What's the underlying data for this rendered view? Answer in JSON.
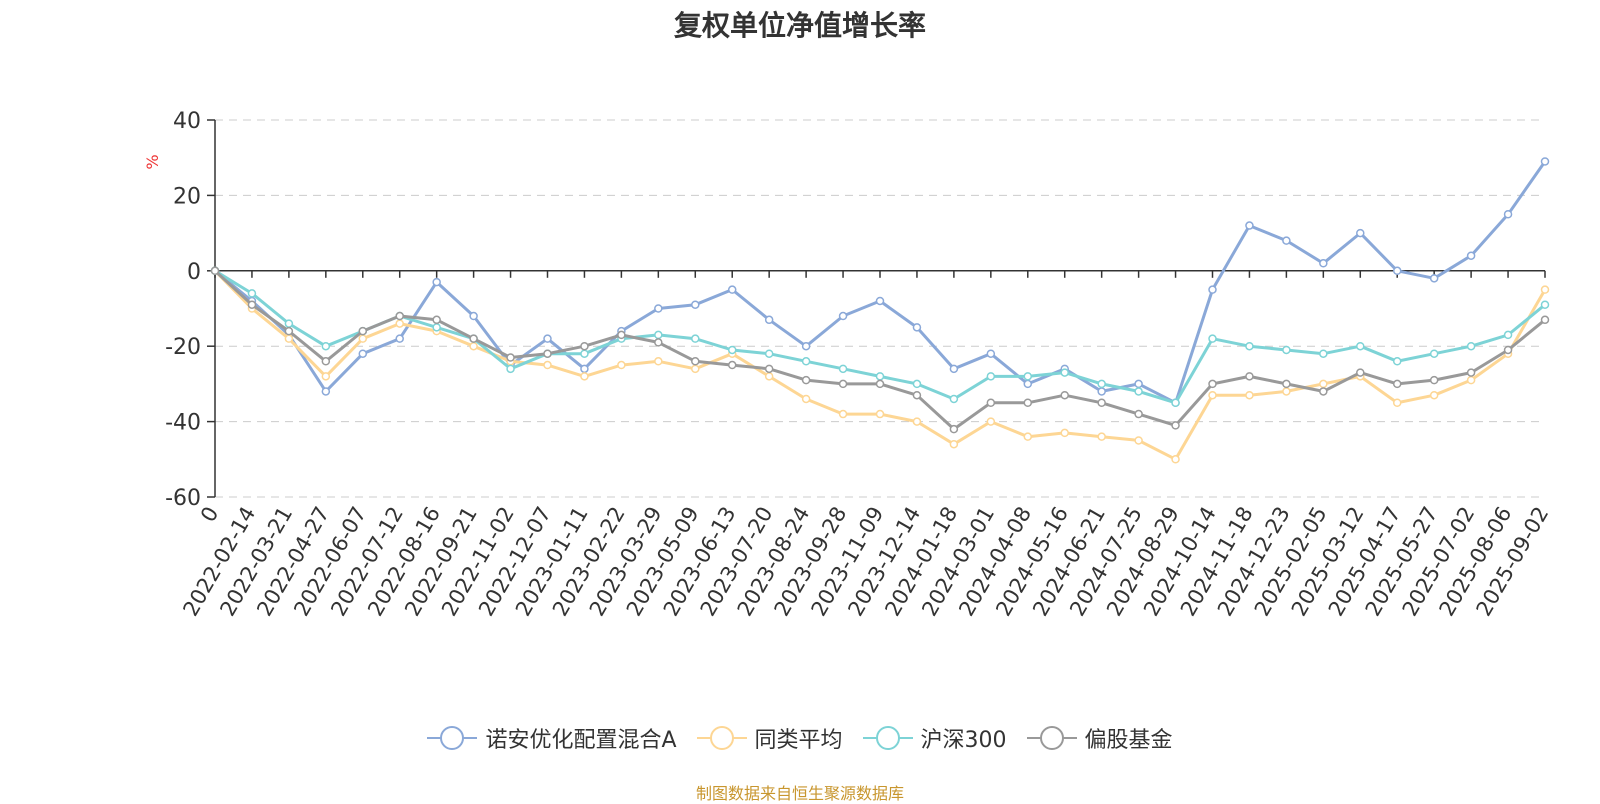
{
  "chart_data": {
    "type": "line",
    "title": "复权单位净值增长率",
    "ylabel": "%",
    "ylim": [
      -60,
      40
    ],
    "yticks": [
      40,
      20,
      0,
      -20,
      -40,
      -60
    ],
    "grid": true,
    "legend_position": "bottom",
    "x": [
      "0",
      "2022-02-14",
      "2022-03-21",
      "2022-04-27",
      "2022-06-07",
      "2022-07-12",
      "2022-08-16",
      "2022-09-21",
      "2022-11-02",
      "2022-12-07",
      "2023-01-11",
      "2023-02-22",
      "2023-03-29",
      "2023-05-09",
      "2023-06-13",
      "2023-07-20",
      "2023-08-24",
      "2023-09-28",
      "2023-11-09",
      "2023-12-14",
      "2024-01-18",
      "2024-03-01",
      "2024-04-08",
      "2024-05-16",
      "2024-06-21",
      "2024-07-25",
      "2024-08-29",
      "2024-10-14",
      "2024-11-18",
      "2024-12-23",
      "2025-02-05",
      "2025-03-12",
      "2025-04-17",
      "2025-05-27",
      "2025-07-02",
      "2025-08-06",
      "2025-09-02"
    ],
    "series": [
      {
        "name": "诺安优化配置混合A",
        "color": "#8aa8d8",
        "values": [
          0,
          -8,
          -17,
          -32,
          -22,
          -18,
          -3,
          -12,
          -25,
          -18,
          -26,
          -16,
          -10,
          -9,
          -5,
          -13,
          -20,
          -12,
          -8,
          -15,
          -26,
          -22,
          -30,
          -26,
          -32,
          -30,
          -35,
          -5,
          12,
          8,
          2,
          10,
          0,
          -2,
          4,
          15,
          29
        ]
      },
      {
        "name": "同类平均",
        "color": "#fdd694",
        "values": [
          0,
          -10,
          -18,
          -28,
          -18,
          -14,
          -16,
          -20,
          -24,
          -25,
          -28,
          -25,
          -24,
          -26,
          -22,
          -28,
          -34,
          -38,
          -38,
          -40,
          -46,
          -40,
          -44,
          -43,
          -44,
          -45,
          -50,
          -33,
          -33,
          -32,
          -30,
          -28,
          -35,
          -33,
          -29,
          -22,
          -5
        ]
      },
      {
        "name": "沪深300",
        "color": "#7dd3d6",
        "values": [
          0,
          -6,
          -14,
          -20,
          -16,
          -12,
          -15,
          -18,
          -26,
          -22,
          -22,
          -18,
          -17,
          -18,
          -21,
          -22,
          -24,
          -26,
          -28,
          -30,
          -34,
          -28,
          -28,
          -27,
          -30,
          -32,
          -35,
          -18,
          -20,
          -21,
          -22,
          -20,
          -24,
          -22,
          -20,
          -17,
          -9
        ]
      },
      {
        "name": "偏股基金",
        "color": "#999999",
        "values": [
          0,
          -9,
          -16,
          -24,
          -16,
          -12,
          -13,
          -18,
          -23,
          -22,
          -20,
          -17,
          -19,
          -24,
          -25,
          -26,
          -29,
          -30,
          -30,
          -33,
          -42,
          -35,
          -35,
          -33,
          -35,
          -38,
          -41,
          -30,
          -28,
          -30,
          -32,
          -27,
          -30,
          -29,
          -27,
          -21,
          -13
        ]
      }
    ]
  },
  "source_label": "制图数据来自恒生聚源数据库"
}
